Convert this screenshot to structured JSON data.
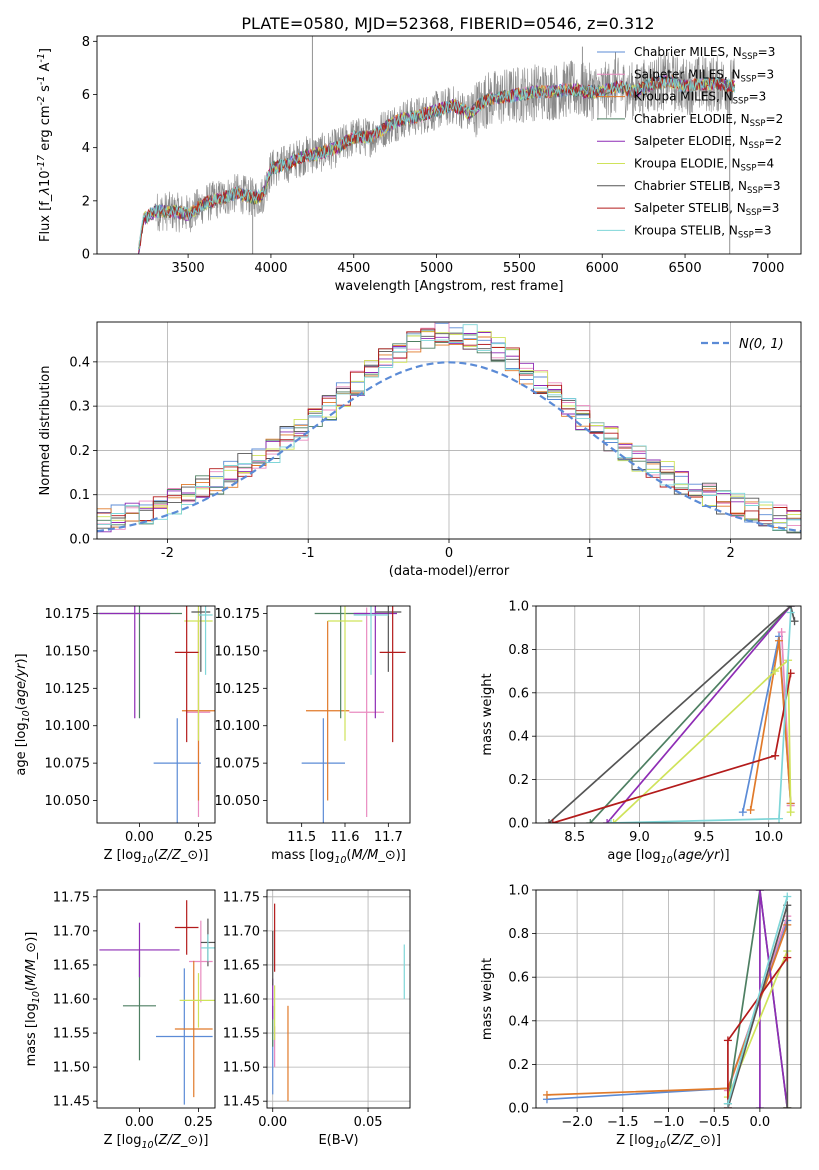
{
  "figure": {
    "title": "PLATE=0580, MJD=52368, FIBERID=0546, z=0.312"
  },
  "series_colors": {
    "Chabrier MILES": "#5b8bd6",
    "Salpeter MILES": "#e98bc0",
    "Kroupa MILES": "#e07a2a",
    "Chabrier ELODIE": "#4e7f62",
    "Salpeter ELODIE": "#8e2cb5",
    "Kroupa ELODIE": "#cfe35a",
    "Chabrier STELIB": "#555555",
    "Salpeter STELIB": "#b31b1b",
    "Kroupa STELIB": "#7fd6d8",
    "data": "#888888",
    "normal": "#5b8bd6"
  },
  "chart_data": [
    {
      "id": "spectrum",
      "type": "line",
      "xlabel": "wavelength [Angstrom, rest frame]",
      "ylabel": "Flux [f$_\\lambda$10$^{-17}$ erg cm$^{-2}$ s$^{-1}$ A$^{-1}$]",
      "xlim": [
        2950,
        7200
      ],
      "ylim": [
        0,
        8.2
      ],
      "xticks": [
        3500,
        4000,
        4500,
        5000,
        5500,
        6000,
        6500,
        7000
      ],
      "yticks": [
        0,
        2,
        4,
        6,
        8
      ],
      "legend_position": "right",
      "legend": [
        {
          "name": "Chabrier MILES",
          "suffix": "=3"
        },
        {
          "name": "Salpeter MILES",
          "suffix": "=3"
        },
        {
          "name": "Kroupa MILES",
          "suffix": "=3"
        },
        {
          "name": "Chabrier ELODIE",
          "suffix": "=2"
        },
        {
          "name": "Salpeter ELODIE",
          "suffix": "=2"
        },
        {
          "name": "Kroupa ELODIE",
          "suffix": "=4"
        },
        {
          "name": "Chabrier STELIB",
          "suffix": "=3"
        },
        {
          "name": "Salpeter STELIB",
          "suffix": "=3"
        },
        {
          "name": "Kroupa STELIB",
          "suffix": "=3"
        }
      ],
      "continuum_x": [
        3200,
        3230,
        3300,
        3400,
        3500,
        3600,
        3700,
        3800,
        3900,
        3950,
        4000,
        4100,
        4200,
        4300,
        4400,
        4500,
        4600,
        4700,
        4800,
        4900,
        5000,
        5100,
        5200,
        5300,
        5400,
        5500,
        5600,
        5700,
        5800,
        5900,
        6000,
        6100,
        6200,
        6300,
        6400,
        6500,
        6600,
        6700,
        6800
      ],
      "continuum_y": [
        0.0,
        1.3,
        1.6,
        1.6,
        1.5,
        1.9,
        2.1,
        2.3,
        2.1,
        2.2,
        3.2,
        3.4,
        3.7,
        3.8,
        4.0,
        4.4,
        4.4,
        4.8,
        5.1,
        5.2,
        5.4,
        5.6,
        5.3,
        5.8,
        5.9,
        6.0,
        6.1,
        6.1,
        6.2,
        6.1,
        6.1,
        6.3,
        6.1,
        6.4,
        6.5,
        6.3,
        6.4,
        6.4,
        6.3
      ]
    },
    {
      "id": "residuals",
      "type": "line",
      "xlabel": "(data-model)/error",
      "ylabel": "Normed distribution",
      "xlim": [
        -2.5,
        2.5
      ],
      "ylim": [
        0,
        0.49
      ],
      "xticks": [
        -2,
        -1,
        0,
        1,
        2
      ],
      "yticks": [
        0.0,
        0.1,
        0.2,
        0.3,
        0.4
      ],
      "legend": "$\\mathcal{N}(0,1)$",
      "legend_position": "top-right",
      "grid": true
    },
    {
      "id": "age-vs-z",
      "type": "scatter",
      "xlabel": "Z [log$_{10}$($Z/Z_\\odot$)]",
      "ylabel": "age  [log$_{10}$($age/yr$)]",
      "xlim": [
        -0.18,
        0.32
      ],
      "ylim": [
        10.035,
        10.18
      ],
      "xticks": [
        0.0,
        0.25
      ],
      "yticks": [
        10.05,
        10.075,
        10.1,
        10.125,
        10.15,
        10.175
      ],
      "points": [
        {
          "series": "Chabrier MILES",
          "x": 0.16,
          "y": 10.075,
          "xerr": 0.1,
          "yerr": [
            0.03,
            0.1
          ]
        },
        {
          "series": "Salpeter MILES",
          "x": 0.25,
          "y": 10.109,
          "xerr": 0.05,
          "yerr": 0.07
        },
        {
          "series": "Kroupa MILES",
          "x": 0.25,
          "y": 10.11,
          "xerr": 0.07,
          "yerr": 0.06
        },
        {
          "series": "Chabrier ELODIE",
          "x": 0.0,
          "y": 10.175,
          "xerr": 0.18,
          "yerr": 0.07
        },
        {
          "series": "Salpeter ELODIE",
          "x": -0.02,
          "y": 10.175,
          "xerr": 0.15,
          "yerr": 0.07
        },
        {
          "series": "Kroupa ELODIE",
          "x": 0.25,
          "y": 10.17,
          "xerr": 0.06,
          "yerr": 0.08
        },
        {
          "series": "Chabrier STELIB",
          "x": 0.26,
          "y": 10.176,
          "xerr": 0.04,
          "yerr": 0.04
        },
        {
          "series": "Salpeter STELIB",
          "x": 0.2,
          "y": 10.149,
          "xerr": 0.05,
          "yerr": 0.06
        },
        {
          "series": "Kroupa STELIB",
          "x": 0.28,
          "y": 10.174,
          "xerr": 0.03,
          "yerr": 0.04
        }
      ]
    },
    {
      "id": "age-vs-mass",
      "type": "scatter",
      "xlabel": "mass [log$_{10}$($M/M_\\odot$)]",
      "ylabel": "",
      "xlim": [
        11.42,
        11.75
      ],
      "ylim": [
        10.035,
        10.18
      ],
      "xticks": [
        11.5,
        11.6,
        11.7
      ],
      "yticks": [
        10.05,
        10.075,
        10.1,
        10.125,
        10.15,
        10.175
      ],
      "points": [
        {
          "series": "Chabrier MILES",
          "x": 11.55,
          "y": 10.075,
          "xerr": 0.05,
          "yerr": [
            0.03,
            0.1
          ]
        },
        {
          "series": "Salpeter MILES",
          "x": 11.65,
          "y": 10.109,
          "xerr": 0.04,
          "yerr": 0.07
        },
        {
          "series": "Kroupa MILES",
          "x": 11.56,
          "y": 10.11,
          "xerr": 0.05,
          "yerr": 0.06
        },
        {
          "series": "Chabrier ELODIE",
          "x": 11.59,
          "y": 10.175,
          "xerr": 0.06,
          "yerr": 0.07
        },
        {
          "series": "Salpeter ELODIE",
          "x": 11.67,
          "y": 10.175,
          "xerr": 0.05,
          "yerr": 0.07
        },
        {
          "series": "Kroupa ELODIE",
          "x": 11.6,
          "y": 10.17,
          "xerr": 0.04,
          "yerr": 0.08
        },
        {
          "series": "Chabrier STELIB",
          "x": 11.7,
          "y": 10.176,
          "xerr": 0.03,
          "yerr": 0.04
        },
        {
          "series": "Salpeter STELIB",
          "x": 11.71,
          "y": 10.149,
          "xerr": 0.03,
          "yerr": 0.06
        },
        {
          "series": "Kroupa STELIB",
          "x": 11.66,
          "y": 10.174,
          "xerr": 0.04,
          "yerr": 0.04
        }
      ]
    },
    {
      "id": "weight-vs-age",
      "type": "line",
      "xlabel": "age  [log$_{10}$($age/yr$)]",
      "ylabel": "mass weight",
      "xlim": [
        8.2,
        10.25
      ],
      "ylim": [
        0,
        1.0
      ],
      "xticks": [
        8.5,
        9.0,
        9.5,
        10.0
      ],
      "yticks": [
        0.0,
        0.2,
        0.4,
        0.6,
        0.8,
        1.0
      ],
      "grid": true,
      "series": [
        {
          "name": "Chabrier MILES",
          "x": [
            9.8,
            10.08,
            10.17
          ],
          "y": [
            0.05,
            0.86,
            0.09
          ]
        },
        {
          "name": "Salpeter MILES",
          "x": [
            10.1,
            10.17
          ],
          "y": [
            0.88,
            0.08
          ]
        },
        {
          "name": "Kroupa MILES",
          "x": [
            9.86,
            10.08,
            10.17
          ],
          "y": [
            0.06,
            0.84,
            0.09
          ]
        },
        {
          "name": "Chabrier ELODIE",
          "x": [
            8.62,
            10.17
          ],
          "y": [
            0.0,
            1.0
          ]
        },
        {
          "name": "Salpeter ELODIE",
          "x": [
            8.75,
            10.17
          ],
          "y": [
            0.0,
            1.0
          ]
        },
        {
          "name": "Kroupa ELODIE",
          "x": [
            8.8,
            10.05,
            10.15,
            10.17
          ],
          "y": [
            0.0,
            0.7,
            0.75,
            0.05
          ]
        },
        {
          "name": "Chabrier STELIB",
          "x": [
            8.3,
            10.17,
            10.2
          ],
          "y": [
            0.0,
            1.0,
            0.93
          ]
        },
        {
          "name": "Salpeter STELIB",
          "x": [
            8.33,
            10.05,
            10.17
          ],
          "y": [
            0.0,
            0.31,
            0.69
          ]
        },
        {
          "name": "Kroupa STELIB",
          "x": [
            8.78,
            10.08,
            10.17
          ],
          "y": [
            0.0,
            0.02,
            0.97
          ]
        }
      ]
    },
    {
      "id": "mass-vs-z",
      "type": "scatter",
      "xlabel": "Z [log$_{10}$($Z/Z_\\odot$)]",
      "ylabel": "mass [log$_{10}$($M/M_\\odot$)]",
      "xlim": [
        -0.18,
        0.32
      ],
      "ylim": [
        11.44,
        11.76
      ],
      "xticks": [
        0.0,
        0.25
      ],
      "yticks": [
        11.45,
        11.5,
        11.55,
        11.6,
        11.65,
        11.7,
        11.75
      ],
      "points": [
        {
          "series": "Chabrier MILES",
          "x": 0.19,
          "y": 11.545,
          "xerr": 0.12,
          "yerr": 0.1
        },
        {
          "series": "Salpeter MILES",
          "x": 0.26,
          "y": 11.655,
          "xerr": 0.05,
          "yerr": 0.06
        },
        {
          "series": "Kroupa MILES",
          "x": 0.23,
          "y": 11.556,
          "xerr": 0.08,
          "yerr": 0.1
        },
        {
          "series": "Chabrier ELODIE",
          "x": 0.0,
          "y": 11.59,
          "xerr": 0.07,
          "yerr": 0.08
        },
        {
          "series": "Salpeter ELODIE",
          "x": 0.0,
          "y": 11.672,
          "xerr": 0.17,
          "yerr": 0.04
        },
        {
          "series": "Kroupa ELODIE",
          "x": 0.25,
          "y": 11.598,
          "xerr": 0.08,
          "yerr": 0.04
        },
        {
          "series": "Chabrier STELIB",
          "x": 0.29,
          "y": 11.683,
          "xerr": 0.03,
          "yerr": 0.035
        },
        {
          "series": "Salpeter STELIB",
          "x": 0.2,
          "y": 11.705,
          "xerr": 0.05,
          "yerr": 0.04
        },
        {
          "series": "Kroupa STELIB",
          "x": 0.29,
          "y": 11.675,
          "xerr": 0.03,
          "yerr": 0.02
        }
      ]
    },
    {
      "id": "mass-vs-ebv",
      "type": "scatter",
      "xlabel": "E(B-V)",
      "ylabel": "",
      "xlim": [
        -0.003,
        0.072
      ],
      "ylim": [
        11.44,
        11.76
      ],
      "xticks": [
        0.0,
        0.05
      ],
      "yticks": [
        11.45,
        11.5,
        11.55,
        11.6,
        11.65,
        11.7,
        11.75
      ],
      "grid": true,
      "points": [
        {
          "series": "Chabrier MILES",
          "x": 0.0,
          "y": 11.5,
          "xerr": 0.0,
          "yerr": 0.04
        },
        {
          "series": "Salpeter MILES",
          "x": 0.001,
          "y": 11.53,
          "xerr": 0.0,
          "yerr": 0.03
        },
        {
          "series": "Kroupa MILES",
          "x": 0.008,
          "y": 11.52,
          "xerr": 0.0,
          "yerr": 0.07
        },
        {
          "series": "Chabrier ELODIE",
          "x": 0.0,
          "y": 11.56,
          "xerr": 0.0,
          "yerr": 0.03
        },
        {
          "series": "Salpeter ELODIE",
          "x": 0.0,
          "y": 11.6,
          "xerr": 0.0,
          "yerr": 0.03
        },
        {
          "series": "Kroupa ELODIE",
          "x": 0.001,
          "y": 11.58,
          "xerr": 0.0,
          "yerr": 0.04
        },
        {
          "series": "Chabrier STELIB",
          "x": 0.0,
          "y": 11.66,
          "xerr": 0.0,
          "yerr": 0.04
        },
        {
          "series": "Salpeter STELIB",
          "x": 0.001,
          "y": 11.69,
          "xerr": 0.0,
          "yerr": 0.05
        },
        {
          "series": "Kroupa STELIB",
          "x": 0.069,
          "y": 11.64,
          "xerr": 0.0,
          "yerr": 0.04
        }
      ]
    },
    {
      "id": "weight-vs-z",
      "type": "line",
      "xlabel": "Z [log$_{10}$($Z/Z_\\odot$)]",
      "ylabel": "mass weight",
      "xlim": [
        -2.45,
        0.45
      ],
      "ylim": [
        0,
        1.0
      ],
      "xticks": [
        -2.0,
        -1.5,
        -1.0,
        -0.5,
        0.0
      ],
      "yticks": [
        0.0,
        0.2,
        0.4,
        0.6,
        0.8,
        1.0
      ],
      "grid": true,
      "series": [
        {
          "name": "Chabrier MILES",
          "x": [
            -2.33,
            -0.35,
            0.3
          ],
          "y": [
            0.04,
            0.09,
            0.86
          ]
        },
        {
          "name": "Salpeter MILES",
          "x": [
            -0.35,
            0.3
          ],
          "y": [
            0.08,
            0.88
          ]
        },
        {
          "name": "Kroupa MILES",
          "x": [
            -2.33,
            -0.35,
            0.3
          ],
          "y": [
            0.06,
            0.09,
            0.84
          ]
        },
        {
          "name": "Chabrier ELODIE",
          "x": [
            -0.35,
            0.0,
            0.3
          ],
          "y": [
            0.02,
            1.0,
            0.0
          ]
        },
        {
          "name": "Salpeter ELODIE",
          "x": [
            0.0,
            0.0,
            0.3
          ],
          "y": [
            0.0,
            1.0,
            0.0
          ]
        },
        {
          "name": "Kroupa ELODIE",
          "x": [
            -0.35,
            0.3,
            0.3
          ],
          "y": [
            0.05,
            0.72,
            0.0
          ]
        },
        {
          "name": "Chabrier STELIB",
          "x": [
            -0.35,
            0.3,
            0.3
          ],
          "y": [
            0.0,
            0.93,
            0.0
          ]
        },
        {
          "name": "Salpeter STELIB",
          "x": [
            -0.35,
            -0.35,
            0.3
          ],
          "y": [
            0.0,
            0.31,
            0.69
          ]
        },
        {
          "name": "Kroupa STELIB",
          "x": [
            -0.35,
            0.3
          ],
          "y": [
            0.02,
            0.97
          ]
        }
      ]
    }
  ]
}
